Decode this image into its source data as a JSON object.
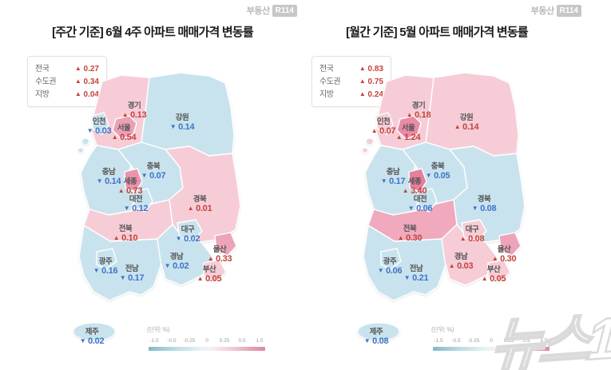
{
  "watermark": "뉴스1",
  "colors": {
    "up_text": "#c4443a",
    "down_text": "#3e74c8",
    "pink_light": "#f6cdd7",
    "pink_mid": "#f0a9bd",
    "pink_dark": "#eba0b6",
    "blue_light": "#c9e3ee"
  },
  "panels": [
    {
      "logo": {
        "prefix": "부동산",
        "badge": "R114"
      },
      "title": "[주간 기준] 6월 4주 아파트 매매가격 변동률",
      "summary": [
        {
          "label": "전국",
          "arrow": "▲",
          "dir": "up",
          "value": "0.27"
        },
        {
          "label": "수도권",
          "arrow": "▲",
          "dir": "up",
          "value": "0.34"
        },
        {
          "label": "지방",
          "arrow": "▲",
          "dir": "up",
          "value": "0.04"
        }
      ],
      "unit_label": "(단위: %)",
      "colorbar_ticks": [
        "-1.5",
        "-0.5",
        "-0.25",
        "0",
        "0.25",
        "0.5",
        "1.5"
      ],
      "regions": [
        {
          "key": "gyeonggi",
          "name": "경기",
          "arrow": "▲",
          "dir": "up",
          "value": "0.13",
          "color": "#f6cdd7"
        },
        {
          "key": "gangwon",
          "name": "강원",
          "arrow": "▼",
          "dir": "down",
          "value": "0.14",
          "color": "#c9e3ee"
        },
        {
          "key": "incheon",
          "name": "인천",
          "arrow": "▼",
          "dir": "down",
          "value": "0.03",
          "color": "#c9e3ee"
        },
        {
          "key": "seoul",
          "name": "서울",
          "arrow": "▲",
          "dir": "up",
          "value": "0.54",
          "color": "#eba0b6"
        },
        {
          "key": "chungnam",
          "name": "충남",
          "arrow": "▼",
          "dir": "down",
          "value": "0.14",
          "color": "#c9e3ee"
        },
        {
          "key": "chungbuk",
          "name": "충북",
          "arrow": "▼",
          "dir": "down",
          "value": "0.07",
          "color": "#c9e3ee"
        },
        {
          "key": "sejong",
          "name": "세종",
          "arrow": "▲",
          "dir": "up",
          "value": "0.73",
          "color": "#e994ac"
        },
        {
          "key": "daejeon",
          "name": "대전",
          "arrow": "▼",
          "dir": "down",
          "value": "0.12",
          "color": "#c9e3ee"
        },
        {
          "key": "gyeongbuk",
          "name": "경북",
          "arrow": "▲",
          "dir": "up",
          "value": "0.01",
          "color": "#f6cdd7"
        },
        {
          "key": "jeonbuk",
          "name": "전북",
          "arrow": "▲",
          "dir": "up",
          "value": "0.10",
          "color": "#f6cdd7"
        },
        {
          "key": "daegu",
          "name": "대구",
          "arrow": "▼",
          "dir": "down",
          "value": "0.02",
          "color": "#c9e3ee"
        },
        {
          "key": "gyeongnam",
          "name": "경남",
          "arrow": "▼",
          "dir": "down",
          "value": "0.02",
          "color": "#c9e3ee"
        },
        {
          "key": "ulsan",
          "name": "울산",
          "arrow": "▲",
          "dir": "up",
          "value": "0.33",
          "color": "#eda4ba"
        },
        {
          "key": "busan",
          "name": "부산",
          "arrow": "▲",
          "dir": "up",
          "value": "0.05",
          "color": "#f6cdd7"
        },
        {
          "key": "gwangju",
          "name": "광주",
          "arrow": "▼",
          "dir": "down",
          "value": "0.16",
          "color": "#c9e3ee"
        },
        {
          "key": "jeonnam",
          "name": "전남",
          "arrow": "▼",
          "dir": "down",
          "value": "0.17",
          "color": "#c9e3ee"
        },
        {
          "key": "jeju",
          "name": "제주",
          "arrow": "▼",
          "dir": "down",
          "value": "0.02",
          "color": "#c9e3ee"
        }
      ]
    },
    {
      "logo": {
        "prefix": "부동산",
        "badge": "R114"
      },
      "title": "[월간 기준] 5월 아파트 매매가격 변동률",
      "summary": [
        {
          "label": "전국",
          "arrow": "▲",
          "dir": "up",
          "value": "0.83"
        },
        {
          "label": "수도권",
          "arrow": "▲",
          "dir": "up",
          "value": "0.75"
        },
        {
          "label": "지방",
          "arrow": "▲",
          "dir": "up",
          "value": "0.24"
        }
      ],
      "unit_label": "(단위: %)",
      "colorbar_ticks": [
        "-1.5",
        "-0.5",
        "-0.25",
        "0",
        "0.25",
        "0.5",
        "1.5"
      ],
      "regions": [
        {
          "key": "gyeonggi",
          "name": "경기",
          "arrow": "▲",
          "dir": "up",
          "value": "0.18",
          "color": "#f6cdd7"
        },
        {
          "key": "gangwon",
          "name": "강원",
          "arrow": "▲",
          "dir": "up",
          "value": "0.14",
          "color": "#f6cdd7"
        },
        {
          "key": "incheon",
          "name": "인천",
          "arrow": "▲",
          "dir": "up",
          "value": "0.07",
          "color": "#f6cdd7"
        },
        {
          "key": "seoul",
          "name": "서울",
          "arrow": "▲",
          "dir": "up",
          "value": "1.24",
          "color": "#e88ba6"
        },
        {
          "key": "chungnam",
          "name": "충남",
          "arrow": "▼",
          "dir": "down",
          "value": "0.17",
          "color": "#c9e3ee"
        },
        {
          "key": "chungbuk",
          "name": "충북",
          "arrow": "▼",
          "dir": "down",
          "value": "0.05",
          "color": "#c9e3ee"
        },
        {
          "key": "sejong",
          "name": "세종",
          "arrow": "▲",
          "dir": "up",
          "value": "3.40",
          "color": "#e57f9e"
        },
        {
          "key": "daejeon",
          "name": "대전",
          "arrow": "▼",
          "dir": "down",
          "value": "0.06",
          "color": "#c9e3ee"
        },
        {
          "key": "gyeongbuk",
          "name": "경북",
          "arrow": "▼",
          "dir": "down",
          "value": "0.08",
          "color": "#c9e3ee"
        },
        {
          "key": "jeonbuk",
          "name": "전북",
          "arrow": "▲",
          "dir": "up",
          "value": "0.30",
          "color": "#f0a9bd"
        },
        {
          "key": "daegu",
          "name": "대구",
          "arrow": "▲",
          "dir": "up",
          "value": "0.08",
          "color": "#f6cdd7"
        },
        {
          "key": "gyeongnam",
          "name": "경남",
          "arrow": "▲",
          "dir": "up",
          "value": "0.03",
          "color": "#f6cdd7"
        },
        {
          "key": "ulsan",
          "name": "울산",
          "arrow": "▲",
          "dir": "up",
          "value": "0.30",
          "color": "#eda4ba"
        },
        {
          "key": "busan",
          "name": "부산",
          "arrow": "▲",
          "dir": "up",
          "value": "0.05",
          "color": "#f6cdd7"
        },
        {
          "key": "gwangju",
          "name": "광주",
          "arrow": "▼",
          "dir": "down",
          "value": "0.06",
          "color": "#c9e3ee"
        },
        {
          "key": "jeonnam",
          "name": "전남",
          "arrow": "▼",
          "dir": "down",
          "value": "0.21",
          "color": "#c9e3ee"
        },
        {
          "key": "jeju",
          "name": "제주",
          "arrow": "▼",
          "dir": "down",
          "value": "0.08",
          "color": "#c9e3ee"
        }
      ]
    }
  ],
  "chart_data": [
    {
      "type": "heatmap",
      "subtype": "choropleth-map",
      "title": "[주간 기준] 6월 4주 아파트 매매가격 변동률",
      "unit": "%",
      "legend": {
        "position": "bottom",
        "range": [
          -1.5,
          1.5
        ],
        "ticks": [
          -1.5,
          -0.5,
          -0.25,
          0,
          0.25,
          0.5,
          1.5
        ],
        "label": "(단위: %)"
      },
      "national_summary": {
        "전국": 0.27,
        "수도권": 0.34,
        "지방": 0.04
      },
      "categories": [
        "경기",
        "강원",
        "인천",
        "서울",
        "충남",
        "충북",
        "세종",
        "대전",
        "경북",
        "전북",
        "대구",
        "경남",
        "울산",
        "부산",
        "광주",
        "전남",
        "제주"
      ],
      "values": [
        0.13,
        -0.14,
        -0.03,
        0.54,
        -0.14,
        -0.07,
        0.73,
        -0.12,
        0.01,
        0.1,
        -0.02,
        -0.02,
        0.33,
        0.05,
        -0.16,
        -0.17,
        -0.02
      ]
    },
    {
      "type": "heatmap",
      "subtype": "choropleth-map",
      "title": "[월간 기준] 5월 아파트 매매가격 변동률",
      "unit": "%",
      "legend": {
        "position": "bottom",
        "range": [
          -1.5,
          1.5
        ],
        "ticks": [
          -1.5,
          -0.5,
          -0.25,
          0,
          0.25,
          0.5,
          1.5
        ],
        "label": "(단위: %)"
      },
      "national_summary": {
        "전국": 0.83,
        "수도권": 0.75,
        "지방": 0.24
      },
      "categories": [
        "경기",
        "강원",
        "인천",
        "서울",
        "충남",
        "충북",
        "세종",
        "대전",
        "경북",
        "전북",
        "대구",
        "경남",
        "울산",
        "부산",
        "광주",
        "전남",
        "제주"
      ],
      "values": [
        0.18,
        0.14,
        0.07,
        1.24,
        -0.17,
        -0.05,
        3.4,
        -0.06,
        -0.08,
        0.3,
        0.08,
        0.03,
        0.3,
        0.05,
        -0.06,
        -0.21,
        -0.08
      ]
    }
  ]
}
